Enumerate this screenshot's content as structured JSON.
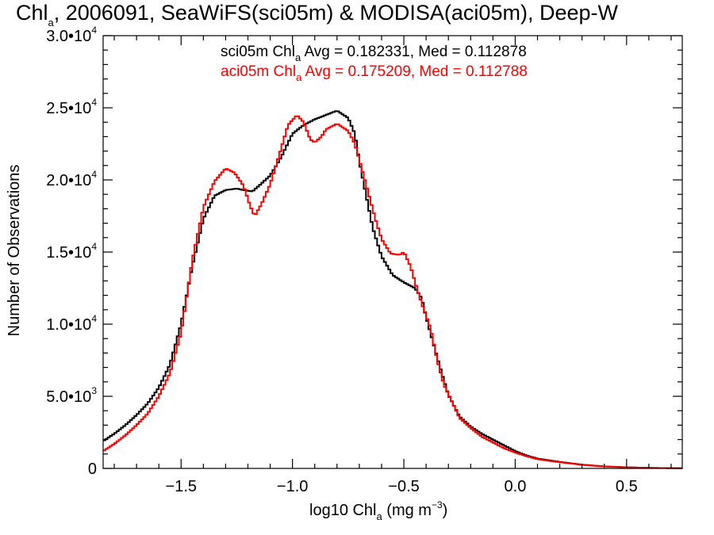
{
  "title": {
    "pre": "Chl",
    "sub": "a",
    "post": ", 2006091, SeaWiFS(sci05m) & MODISA(aci05m), Deep-W"
  },
  "annotations": [
    {
      "pre": "sci05m Chl",
      "sub": "a",
      "post": " Avg = 0.182331, Med = 0.112878",
      "color": "#000000"
    },
    {
      "pre": "aci05m Chl",
      "sub": "a",
      "post": " Avg = 0.175209, Med = 0.112788",
      "color": "#ff0000"
    }
  ],
  "y_axis": {
    "label": "Number of Observations",
    "ticks": [
      {
        "value": 0,
        "base": "0",
        "exp": ""
      },
      {
        "value": 5000,
        "base": "5.0•1",
        "tail": "0",
        "exp": "3"
      },
      {
        "value": 10000,
        "base": "1.0•1",
        "tail": "0",
        "exp": "4"
      },
      {
        "value": 15000,
        "base": "1.5•1",
        "tail": "0",
        "exp": "4"
      },
      {
        "value": 20000,
        "base": "2.0•1",
        "tail": "0",
        "exp": "4"
      },
      {
        "value": 25000,
        "base": "2.5•1",
        "tail": "0",
        "exp": "4"
      },
      {
        "value": 30000,
        "base": "3.0•1",
        "tail": "0",
        "exp": "4"
      }
    ]
  },
  "x_axis": {
    "label_pre": "log10 Chl",
    "label_sub": "a",
    "label_mid": " (mg m",
    "label_sup": "−3",
    "label_post": ")",
    "ticks": [
      "−1.5",
      "−1.0",
      "−0.5",
      "0.0",
      "0.5"
    ]
  },
  "chart_data": {
    "type": "line",
    "step": true,
    "xlim": [
      -1.85,
      0.75
    ],
    "ylim": [
      0,
      30000
    ],
    "x_ticks": [
      -1.5,
      -1.0,
      -0.5,
      0.0,
      0.5
    ],
    "y_ticks": [
      0,
      5000,
      10000,
      15000,
      20000,
      25000,
      30000
    ],
    "xlabel": "log10 Chla (mg m-3)",
    "ylabel": "Number of Observations",
    "grid": false,
    "series": [
      {
        "name": "sci05m",
        "color": "#000000",
        "points": [
          [
            -1.85,
            1900
          ],
          [
            -1.8,
            2400
          ],
          [
            -1.75,
            3000
          ],
          [
            -1.7,
            3700
          ],
          [
            -1.65,
            4500
          ],
          [
            -1.6,
            5600
          ],
          [
            -1.55,
            7200
          ],
          [
            -1.5,
            10000
          ],
          [
            -1.45,
            14000
          ],
          [
            -1.4,
            17300
          ],
          [
            -1.35,
            18900
          ],
          [
            -1.3,
            19300
          ],
          [
            -1.25,
            19400
          ],
          [
            -1.22,
            19300
          ],
          [
            -1.18,
            19200
          ],
          [
            -1.15,
            19600
          ],
          [
            -1.1,
            20300
          ],
          [
            -1.05,
            21600
          ],
          [
            -1.0,
            23200
          ],
          [
            -0.95,
            23800
          ],
          [
            -0.9,
            24200
          ],
          [
            -0.85,
            24500
          ],
          [
            -0.8,
            24800
          ],
          [
            -0.75,
            24300
          ],
          [
            -0.72,
            23200
          ],
          [
            -0.7,
            21300
          ],
          [
            -0.67,
            19000
          ],
          [
            -0.64,
            16700
          ],
          [
            -0.6,
            14700
          ],
          [
            -0.55,
            13400
          ],
          [
            -0.5,
            12900
          ],
          [
            -0.45,
            12500
          ],
          [
            -0.42,
            11800
          ],
          [
            -0.4,
            10500
          ],
          [
            -0.37,
            8800
          ],
          [
            -0.33,
            6600
          ],
          [
            -0.3,
            5100
          ],
          [
            -0.25,
            3600
          ],
          [
            -0.2,
            2900
          ],
          [
            -0.15,
            2400
          ],
          [
            -0.1,
            2000
          ],
          [
            -0.05,
            1600
          ],
          [
            0.0,
            1200
          ],
          [
            0.05,
            900
          ],
          [
            0.1,
            680
          ],
          [
            0.2,
            450
          ],
          [
            0.3,
            260
          ],
          [
            0.4,
            140
          ],
          [
            0.5,
            80
          ],
          [
            0.6,
            40
          ],
          [
            0.7,
            20
          ],
          [
            0.75,
            15
          ]
        ]
      },
      {
        "name": "aci05m",
        "color": "#ff0000",
        "points": [
          [
            -1.85,
            1200
          ],
          [
            -1.8,
            1700
          ],
          [
            -1.75,
            2300
          ],
          [
            -1.7,
            3000
          ],
          [
            -1.65,
            3800
          ],
          [
            -1.6,
            5000
          ],
          [
            -1.55,
            6600
          ],
          [
            -1.5,
            9400
          ],
          [
            -1.45,
            14400
          ],
          [
            -1.4,
            18100
          ],
          [
            -1.35,
            19900
          ],
          [
            -1.3,
            20800
          ],
          [
            -1.26,
            20500
          ],
          [
            -1.22,
            19600
          ],
          [
            -1.19,
            18200
          ],
          [
            -1.17,
            17500
          ],
          [
            -1.14,
            18300
          ],
          [
            -1.1,
            19700
          ],
          [
            -1.06,
            21700
          ],
          [
            -1.02,
            23800
          ],
          [
            -0.98,
            24500
          ],
          [
            -0.95,
            24000
          ],
          [
            -0.92,
            22800
          ],
          [
            -0.9,
            22600
          ],
          [
            -0.87,
            23000
          ],
          [
            -0.85,
            23500
          ],
          [
            -0.8,
            23900
          ],
          [
            -0.75,
            23400
          ],
          [
            -0.72,
            22500
          ],
          [
            -0.7,
            21400
          ],
          [
            -0.67,
            19700
          ],
          [
            -0.63,
            17400
          ],
          [
            -0.6,
            15900
          ],
          [
            -0.56,
            14900
          ],
          [
            -0.52,
            14800
          ],
          [
            -0.5,
            15000
          ],
          [
            -0.47,
            14000
          ],
          [
            -0.44,
            12400
          ],
          [
            -0.41,
            11000
          ],
          [
            -0.38,
            9700
          ],
          [
            -0.35,
            7500
          ],
          [
            -0.32,
            5800
          ],
          [
            -0.28,
            4500
          ],
          [
            -0.25,
            3500
          ],
          [
            -0.2,
            2800
          ],
          [
            -0.15,
            2200
          ],
          [
            -0.1,
            1800
          ],
          [
            -0.05,
            1400
          ],
          [
            0.0,
            1100
          ],
          [
            0.05,
            850
          ],
          [
            0.1,
            640
          ],
          [
            0.2,
            430
          ],
          [
            0.3,
            250
          ],
          [
            0.4,
            130
          ],
          [
            0.5,
            75
          ],
          [
            0.6,
            40
          ],
          [
            0.7,
            20
          ],
          [
            0.75,
            15
          ]
        ]
      }
    ]
  }
}
